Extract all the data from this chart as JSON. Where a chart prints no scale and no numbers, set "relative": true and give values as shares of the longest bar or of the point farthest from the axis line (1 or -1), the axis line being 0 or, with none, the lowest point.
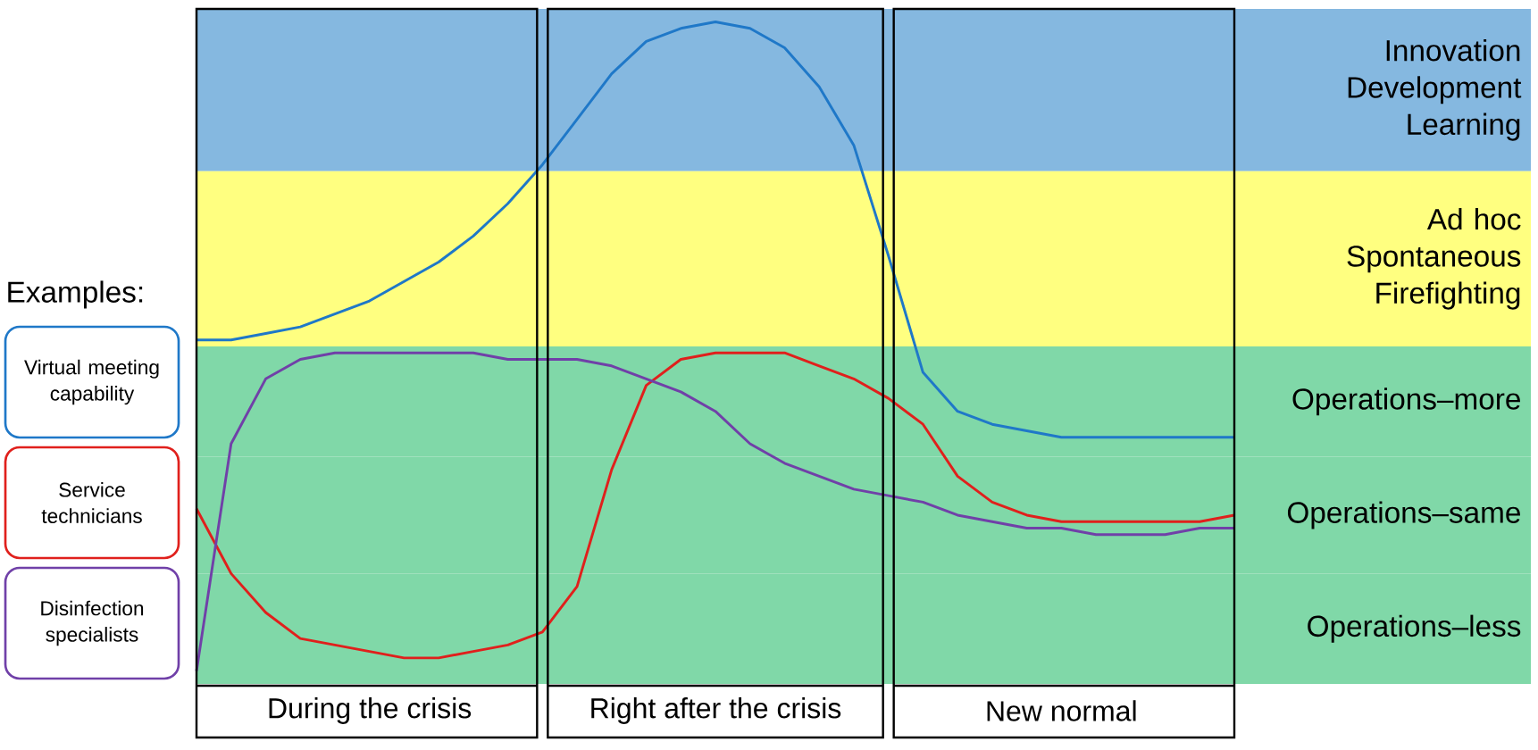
{
  "chart_data": {
    "type": "line",
    "relative": true,
    "legend": "left",
    "legend_title": "Examples:",
    "categories": [
      null,
      null,
      null,
      null,
      null,
      null,
      null,
      null,
      null,
      null,
      null,
      null,
      null,
      null,
      null,
      null,
      null,
      null,
      null,
      null,
      null,
      null,
      null,
      null,
      null,
      null,
      null,
      null,
      null,
      null,
      null
    ],
    "series": [
      {
        "name": "Virtual meeting capability",
        "color": "#1f78c8",
        "values": [
          0.51,
          0.51,
          0.52,
          0.53,
          0.55,
          0.57,
          0.6,
          0.63,
          0.67,
          0.72,
          0.78,
          0.85,
          0.92,
          0.97,
          0.99,
          1.0,
          0.99,
          0.96,
          0.9,
          0.81,
          0.64,
          0.46,
          0.4,
          0.38,
          0.37,
          0.36,
          0.36,
          0.36,
          0.36,
          0.36,
          0.36
        ]
      },
      {
        "name": "Service technicians",
        "color": "#e0201c",
        "values": [
          0.25,
          0.15,
          0.09,
          0.05,
          0.04,
          0.03,
          0.02,
          0.02,
          0.03,
          0.04,
          0.06,
          0.13,
          0.31,
          0.44,
          0.48,
          0.49,
          0.49,
          0.49,
          0.47,
          0.45,
          0.42,
          0.38,
          0.3,
          0.26,
          0.24,
          0.23,
          0.23,
          0.23,
          0.23,
          0.23,
          0.24
        ]
      },
      {
        "name": "Disinfection specialists",
        "color": "#7040a8",
        "values": [
          0,
          0.35,
          0.45,
          0.48,
          0.49,
          0.49,
          0.49,
          0.49,
          0.49,
          0.48,
          0.48,
          0.48,
          0.47,
          0.45,
          0.43,
          0.4,
          0.35,
          0.32,
          0.3,
          0.28,
          0.27,
          0.26,
          0.24,
          0.23,
          0.22,
          0.22,
          0.21,
          0.21,
          0.21,
          0.22,
          0.22
        ]
      }
    ],
    "bands": [
      {
        "axis": "y",
        "from": 0.77,
        "to": 1.02,
        "label": "Innovation Development Learning",
        "color": "#85b8e0"
      },
      {
        "axis": "y",
        "from": 0.5,
        "to": 0.77,
        "label": "Ad hoc Spontaneous Firefighting",
        "color": "#ffff80"
      },
      {
        "axis": "y",
        "from": 0.33,
        "to": 0.5,
        "label": "Operations–more",
        "color": "#80d8a8"
      },
      {
        "axis": "y",
        "from": 0.15,
        "to": 0.33,
        "label": "Operations–same",
        "color": "#80d8a8"
      },
      {
        "axis": "y",
        "from": -0.02,
        "to": 0.15,
        "label": "Operations–less",
        "color": "#80d8a8"
      }
    ],
    "annotations": [
      "During the crisis",
      "Right after the crisis",
      "New normal"
    ]
  }
}
